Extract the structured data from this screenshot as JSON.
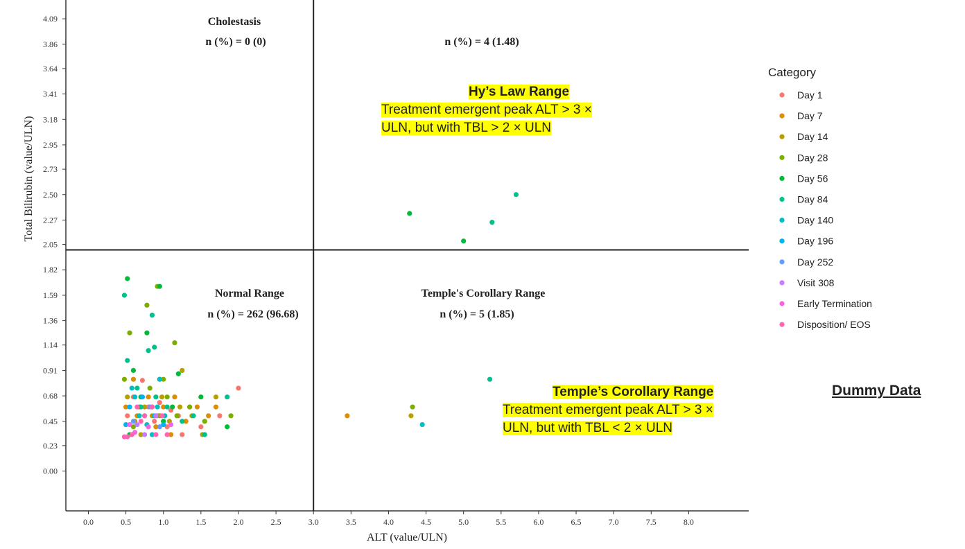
{
  "chart_data": {
    "type": "scatter",
    "xlabel": "ALT (value/ULN)",
    "ylabel": "Total Bilirubin (value/ULN)",
    "xlim": [
      -0.3,
      8.8
    ],
    "ylim": [
      -0.36,
      4.26
    ],
    "x_ticks": [
      "0.0",
      "0.5",
      "1.0",
      "1.5",
      "2.0",
      "2.5",
      "3.0",
      "3.5",
      "4.0",
      "4.5",
      "5.0",
      "5.5",
      "6.0",
      "6.5",
      "7.0",
      "7.5",
      "8.0"
    ],
    "y_ticks": [
      "0.00",
      "0.23",
      "0.45",
      "0.68",
      "0.91",
      "1.14",
      "1.36",
      "1.59",
      "1.82",
      "2.05",
      "2.27",
      "2.50",
      "2.73",
      "2.95",
      "3.18",
      "3.41",
      "3.64",
      "3.86",
      "4.09"
    ],
    "reference_lines": {
      "x": 3.0,
      "y": 2.0
    },
    "quadrants": {
      "cholestasis": {
        "title": "Cholestasis",
        "count": "n (%) = 0 (0)"
      },
      "hys_law": {
        "title": "",
        "count": "n (%) = 4 (1.48)"
      },
      "normal": {
        "title": "Normal Range",
        "count": "n (%) = 262 (96.68)"
      },
      "temple": {
        "title": "Temple's Corollary Range",
        "count": "n (%) = 5 (1.85)"
      }
    },
    "legend": {
      "title": "Category",
      "placement": "right",
      "items": [
        {
          "name": "Day 1",
          "color": "#f8766d"
        },
        {
          "name": "Day 7",
          "color": "#de8c00"
        },
        {
          "name": "Day 14",
          "color": "#b79f00"
        },
        {
          "name": "Day 28",
          "color": "#7cae00"
        },
        {
          "name": "Day 56",
          "color": "#00ba38"
        },
        {
          "name": "Day 84",
          "color": "#00c08b"
        },
        {
          "name": "Day 140",
          "color": "#00bfc4"
        },
        {
          "name": "Day 196",
          "color": "#00b4f0"
        },
        {
          "name": "Day 252",
          "color": "#619cff"
        },
        {
          "name": "Visit 308",
          "color": "#c77cff"
        },
        {
          "name": "Early Termination",
          "color": "#f564e3"
        },
        {
          "name": "Disposition/ EOS",
          "color": "#ff64b0"
        }
      ]
    },
    "series": [
      {
        "name": "Day 1",
        "points": [
          [
            0.52,
            0.5
          ],
          [
            0.6,
            0.67
          ],
          [
            0.8,
            0.58
          ],
          [
            0.88,
            0.45
          ],
          [
            0.95,
            0.62
          ],
          [
            1.05,
            0.4
          ],
          [
            1.1,
            0.55
          ],
          [
            1.2,
            0.5
          ],
          [
            1.25,
            0.33
          ],
          [
            1.35,
            0.58
          ],
          [
            1.5,
            0.4
          ],
          [
            1.75,
            0.5
          ],
          [
            2.0,
            0.75
          ],
          [
            0.92,
            0.5
          ],
          [
            0.72,
            0.82
          ]
        ]
      },
      {
        "name": "Day 7",
        "points": [
          [
            3.45,
            0.5
          ],
          [
            0.5,
            0.58
          ],
          [
            0.65,
            0.5
          ],
          [
            0.8,
            0.67
          ],
          [
            0.9,
            0.4
          ],
          [
            1.0,
            0.58
          ],
          [
            1.15,
            0.67
          ],
          [
            1.3,
            0.45
          ],
          [
            1.45,
            0.58
          ],
          [
            1.6,
            0.5
          ],
          [
            1.7,
            0.58
          ],
          [
            0.6,
            0.83
          ],
          [
            1.1,
            0.33
          ]
        ]
      },
      {
        "name": "Day 14",
        "points": [
          [
            4.3,
            0.5
          ],
          [
            0.52,
            0.67
          ],
          [
            0.62,
            0.45
          ],
          [
            0.75,
            0.58
          ],
          [
            0.85,
            0.5
          ],
          [
            0.98,
            0.67
          ],
          [
            1.08,
            0.45
          ],
          [
            1.22,
            0.58
          ],
          [
            1.38,
            0.5
          ],
          [
            1.52,
            0.33
          ],
          [
            1.7,
            0.67
          ],
          [
            0.7,
            0.33
          ],
          [
            1.25,
            0.91
          ],
          [
            0.95,
            0.83
          ]
        ]
      },
      {
        "name": "Day 28",
        "points": [
          [
            4.32,
            0.58
          ],
          [
            0.78,
            1.5
          ],
          [
            0.55,
            1.25
          ],
          [
            0.48,
            0.83
          ],
          [
            0.68,
            0.58
          ],
          [
            0.82,
            0.75
          ],
          [
            0.95,
            0.5
          ],
          [
            1.05,
            0.67
          ],
          [
            1.18,
            0.5
          ],
          [
            1.35,
            0.58
          ],
          [
            1.55,
            0.45
          ],
          [
            1.9,
            0.5
          ],
          [
            1.15,
            1.16
          ],
          [
            0.92,
            1.67
          ],
          [
            0.6,
            0.4
          ],
          [
            1.0,
            0.83
          ]
        ]
      },
      {
        "name": "Day 56",
        "points": [
          [
            4.28,
            2.33
          ],
          [
            5.0,
            2.08
          ],
          [
            0.52,
            1.74
          ],
          [
            0.78,
            1.25
          ],
          [
            0.95,
            1.67
          ],
          [
            0.6,
            0.91
          ],
          [
            0.7,
            0.67
          ],
          [
            0.85,
            0.58
          ],
          [
            1.0,
            0.45
          ],
          [
            1.12,
            0.58
          ],
          [
            1.2,
            0.88
          ],
          [
            1.5,
            0.67
          ],
          [
            1.85,
            0.4
          ],
          [
            0.55,
            0.33
          ]
        ]
      },
      {
        "name": "Day 84",
        "points": [
          [
            5.7,
            2.5
          ],
          [
            5.38,
            2.25
          ],
          [
            5.35,
            0.83
          ],
          [
            0.48,
            1.59
          ],
          [
            0.85,
            1.41
          ],
          [
            0.8,
            1.09
          ],
          [
            0.88,
            1.12
          ],
          [
            0.52,
            1.0
          ],
          [
            0.65,
            0.75
          ],
          [
            0.75,
            0.5
          ],
          [
            0.9,
            0.67
          ],
          [
            1.05,
            0.58
          ],
          [
            1.25,
            0.45
          ],
          [
            1.4,
            0.5
          ],
          [
            1.85,
            0.67
          ],
          [
            1.55,
            0.33
          ],
          [
            0.7,
            0.58
          ]
        ]
      },
      {
        "name": "Day 140",
        "points": [
          [
            4.45,
            0.42
          ],
          [
            0.58,
            0.75
          ],
          [
            0.68,
            0.5
          ],
          [
            0.78,
            0.42
          ],
          [
            0.92,
            0.58
          ],
          [
            1.02,
            0.5
          ],
          [
            0.95,
            0.83
          ],
          [
            0.62,
            0.67
          ],
          [
            0.85,
            0.33
          ]
        ]
      },
      {
        "name": "Day 196",
        "points": [
          [
            0.55,
            0.58
          ],
          [
            0.72,
            0.67
          ],
          [
            0.88,
            0.5
          ],
          [
            1.0,
            0.42
          ],
          [
            0.5,
            0.42
          ]
        ]
      },
      {
        "name": "Day 252",
        "points": [
          [
            0.6,
            0.45
          ],
          [
            0.82,
            0.58
          ],
          [
            0.95,
            0.4
          ]
        ]
      },
      {
        "name": "Visit 308",
        "points": [
          [
            0.65,
            0.42
          ],
          [
            0.9,
            0.5
          ],
          [
            0.75,
            0.33
          ]
        ]
      },
      {
        "name": "Early Termination",
        "points": [
          [
            0.55,
            0.42
          ],
          [
            0.8,
            0.4
          ],
          [
            1.1,
            0.42
          ],
          [
            0.62,
            0.35
          ]
        ]
      },
      {
        "name": "Disposition/ EOS",
        "points": [
          [
            0.48,
            0.31
          ],
          [
            0.58,
            0.33
          ],
          [
            0.7,
            0.45
          ],
          [
            0.85,
            0.58
          ],
          [
            0.98,
            0.5
          ],
          [
            1.05,
            0.33
          ],
          [
            0.65,
            0.58
          ],
          [
            0.52,
            0.31
          ],
          [
            0.9,
            0.33
          ],
          [
            0.75,
            0.5
          ]
        ]
      }
    ]
  },
  "callouts": {
    "hys": {
      "title": "Hy’s Law Range",
      "line1": "Treatment emergent peak ALT > 3 ×",
      "line2": "ULN, but with TBL > 2 × ULN"
    },
    "temple": {
      "title": "Temple’s Corollary Range",
      "line1": "Treatment emergent peak ALT > 3 ×",
      "line2": "ULN, but with TBL < 2 × ULN"
    }
  },
  "watermark": "Dummy Data"
}
